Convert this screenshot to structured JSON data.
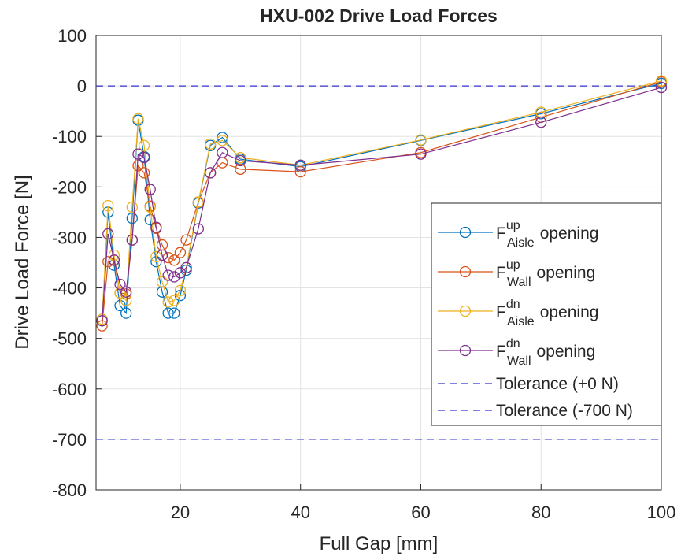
{
  "chart_data": {
    "type": "line",
    "title": "HXU-002 Drive Load Forces",
    "xlabel": "Full Gap [mm]",
    "ylabel": "Drive Load Force [N]",
    "x": [
      7,
      8,
      9,
      10,
      11,
      12,
      13,
      14,
      15,
      16,
      17,
      18,
      19,
      20,
      21,
      23,
      25,
      27,
      30,
      40,
      60,
      80,
      100
    ],
    "series": [
      {
        "name": {
          "symbol": "F",
          "sup": "up",
          "sub": "Aisle",
          "text": "opening"
        },
        "color": "#0072BD",
        "values": [
          -465,
          -250,
          -355,
          -435,
          -450,
          -262,
          -68,
          -140,
          -265,
          -348,
          -408,
          -450,
          -450,
          -415,
          -365,
          -232,
          -118,
          -102,
          -145,
          -160,
          -108,
          -55,
          5
        ]
      },
      {
        "name": {
          "symbol": "F",
          "sup": "up",
          "sub": "Wall",
          "text": "opening"
        },
        "color": "#D95319",
        "values": [
          -475,
          -348,
          -345,
          -410,
          -412,
          -305,
          -158,
          -172,
          -238,
          -282,
          -315,
          -340,
          -345,
          -330,
          -305,
          -230,
          -172,
          -152,
          -165,
          -170,
          -132,
          -62,
          8
        ]
      },
      {
        "name": {
          "symbol": "F",
          "sup": "dn",
          "sub": "Aisle",
          "text": "opening"
        },
        "color": "#EDB120",
        "values": [
          -462,
          -237,
          -335,
          -410,
          -425,
          -240,
          -65,
          -118,
          -240,
          -338,
          -388,
          -428,
          -425,
          -405,
          -360,
          -230,
          -115,
          -108,
          -142,
          -157,
          -107,
          -52,
          10
        ]
      },
      {
        "name": {
          "symbol": "F",
          "sup": "dn",
          "sub": "Wall",
          "text": "opening"
        },
        "color": "#7E2F8E",
        "values": [
          -465,
          -293,
          -345,
          -393,
          -408,
          -305,
          -135,
          -142,
          -205,
          -280,
          -335,
          -375,
          -378,
          -370,
          -360,
          -283,
          -172,
          -132,
          -148,
          -157,
          -135,
          -72,
          -3
        ]
      }
    ],
    "reference_lines": [
      {
        "name": "Tolerance (+0 N)",
        "value": 0,
        "color": "#3333cc"
      },
      {
        "name": "Tolerance (-700 N)",
        "value": -700,
        "color": "#3333cc"
      }
    ],
    "xlim": [
      6,
      100
    ],
    "xticks": [
      20,
      40,
      60,
      80,
      100
    ],
    "ylim": [
      -800,
      100
    ],
    "yticks": [
      -800,
      -700,
      -600,
      -500,
      -400,
      -300,
      -200,
      -100,
      0,
      100
    ],
    "grid": true,
    "legend": "east"
  }
}
